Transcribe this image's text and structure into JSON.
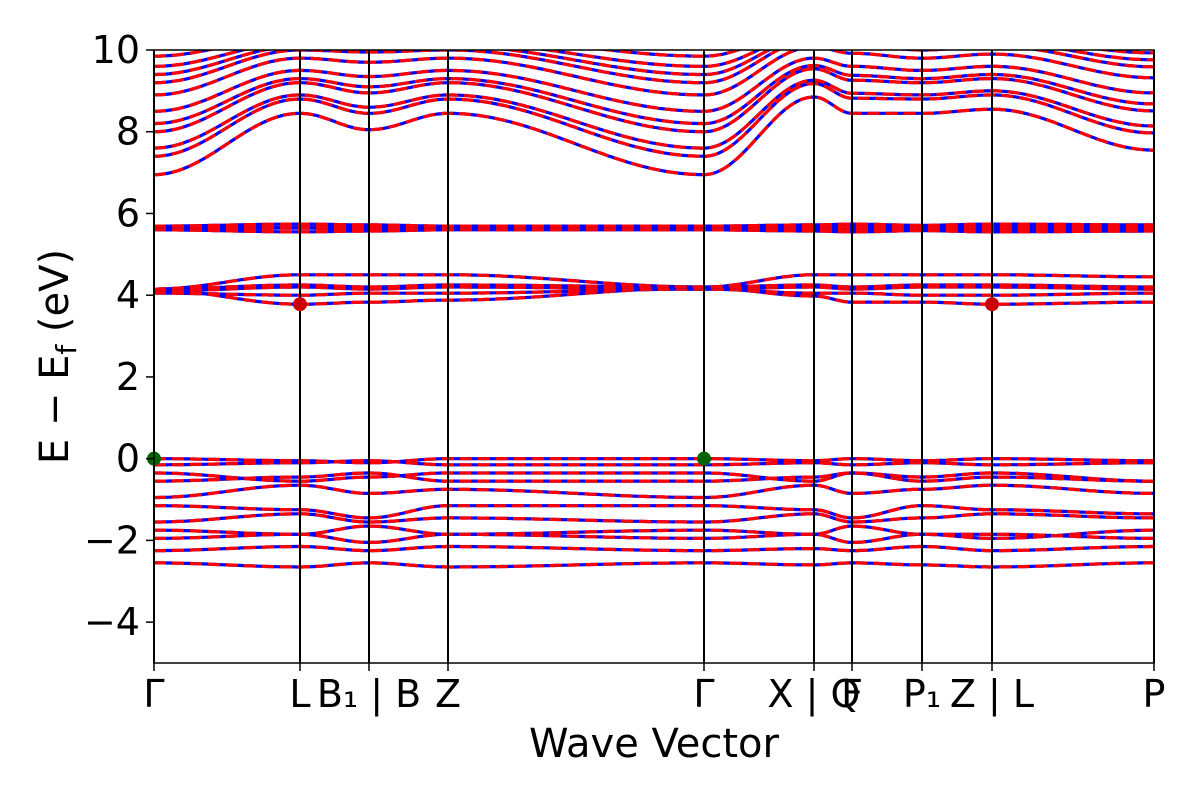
{
  "chart_data": {
    "type": "line",
    "title": "",
    "xlabel": "Wave Vector",
    "ylabel": "E − E_f (eV)",
    "ylabel_parts": {
      "prefix": "E − E",
      "subscript": "f",
      "suffix": " (eV)"
    },
    "ylim": [
      -5,
      10
    ],
    "yticks": [
      -4,
      -2,
      0,
      2,
      4,
      6,
      8,
      10
    ],
    "ytick_labels": [
      "−4",
      "−2",
      "0",
      "2",
      "4",
      "6",
      "8",
      "10"
    ],
    "xlim": [
      0,
      10
    ],
    "kpoints": [
      {
        "x": 0.0,
        "label": "Γ"
      },
      {
        "x": 1.46,
        "label": "L"
      },
      {
        "x": 2.15,
        "label": "B₁ | B"
      },
      {
        "x": 2.94,
        "label": "Z"
      },
      {
        "x": 5.5,
        "label": "Γ"
      },
      {
        "x": 6.6,
        "label": "X | Q"
      },
      {
        "x": 6.98,
        "label": "F"
      },
      {
        "x": 7.68,
        "label": "P₁"
      },
      {
        "x": 8.38,
        "label": "Z | L"
      },
      {
        "x": 10.0,
        "label": "P"
      }
    ],
    "series": [
      {
        "color": "#0000ff",
        "style": "solid"
      },
      {
        "color": "#ff0000",
        "style": "dashed"
      }
    ],
    "band_extrema_markers": [
      {
        "x": 1.46,
        "y": 3.78,
        "color": "#cc0000"
      },
      {
        "x": 8.38,
        "y": 3.78,
        "color": "#cc0000"
      },
      {
        "x": 0.0,
        "y": 0.0,
        "color": "#006400"
      },
      {
        "x": 5.5,
        "y": 0.0,
        "color": "#006400"
      }
    ],
    "valence_bands_at_gamma": [
      0.0,
      -0.15,
      -0.35,
      -0.55,
      -0.95,
      -1.15,
      -1.55,
      -1.75,
      -1.95,
      -2.25,
      -2.55
    ],
    "lower_conduction_bands": [
      3.78,
      3.95,
      4.1,
      4.25,
      4.5
    ],
    "flat_bands": [
      5.55,
      5.62,
      5.68,
      5.74
    ],
    "upper_conduction_band_min_at_gamma": 6.95,
    "grid": false,
    "legend": "none"
  }
}
